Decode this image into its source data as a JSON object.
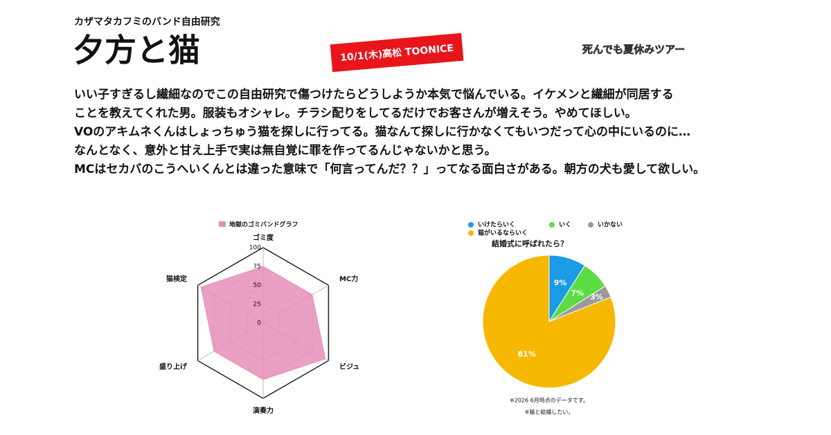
{
  "header": {
    "subtitle": "カザマタカフミのバンド自由研究",
    "title": "夕方と猫",
    "badge": "10/1(木)高松 TOONICE",
    "logo": "死んでも夏休みツアー"
  },
  "body": [
    "いい子すぎるし繊細なのでこの自由研究で傷つけたらどうしようか本気で悩んでいる。イケメンと繊細が同居する",
    "ことを教えてくれた男。服装もオシャレ。チラシ配りをしてるだけでお客さんが増えそう。やめてほしい。",
    "VOのアキムネくんはしょっちゅう猫を探しに行ってる。猫なんて探しに行かなくてもいつだって心の中にいるのに…",
    "なんとなく、意外と甘え上手で実は無自覚に罪を作ってるんじゃないかと思う。",
    "MCはセカバのこうへいくんとは違った意味で「何言ってんだ？？」ってなる面白さがある。朝方の犬も愛して欲しい。"
  ],
  "chart_data": [
    {
      "type": "radar",
      "categories": [
        "ゴミ度",
        "MC力",
        "ビジュ",
        "演奏力",
        "盛り上げ",
        "猫検定"
      ],
      "series": [
        {
          "name": "地獄のゴミバンドグラフ",
          "color": "#e58fb8",
          "values": [
            75,
            75,
            95,
            75,
            75,
            95
          ]
        }
      ],
      "ylim": [
        0,
        100
      ],
      "yticks": [
        0,
        25,
        50,
        75,
        100
      ],
      "grid": true
    },
    {
      "type": "pie",
      "title": "結婚式に呼ばれたら？",
      "categories": [
        "いけたらいく",
        "いく",
        "いかない",
        "猫がいるならいく"
      ],
      "values": [
        9,
        7,
        3,
        81
      ],
      "value_labels": [
        "9%",
        "7%",
        "3%",
        "81%"
      ],
      "colors": [
        "#1a9be6",
        "#5cdc44",
        "#9a9a9a",
        "#f6b800"
      ],
      "notes": [
        "※2026 6月時点のデータです。",
        "※猫と結婚したい。"
      ]
    }
  ]
}
